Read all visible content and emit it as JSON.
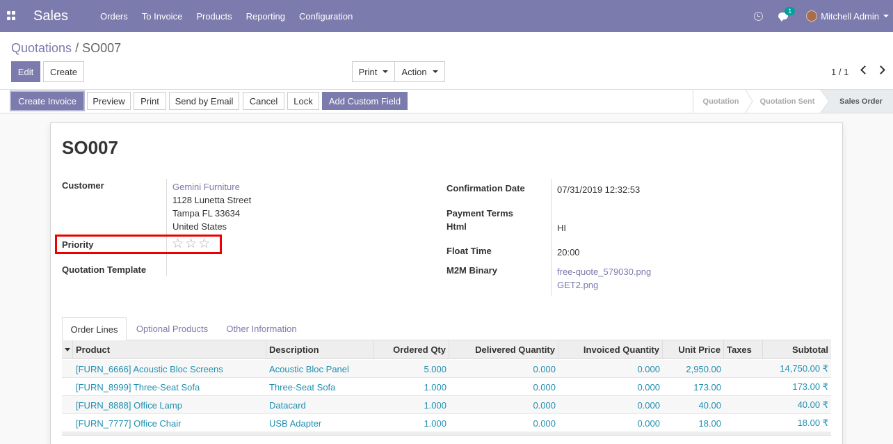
{
  "navbar": {
    "brand": "Sales",
    "menu": [
      "Orders",
      "To Invoice",
      "Products",
      "Reporting",
      "Configuration"
    ],
    "chat_count": "1",
    "user": "Mitchell Admin"
  },
  "breadcrumb": {
    "parent": "Quotations",
    "separator": "/",
    "current": "SO007"
  },
  "buttons": {
    "edit": "Edit",
    "create": "Create",
    "print": "Print",
    "action": "Action"
  },
  "pager": {
    "text": "1 / 1"
  },
  "statusbar": {
    "buttons": [
      "Create Invoice",
      "Preview",
      "Print",
      "Send by Email",
      "Cancel",
      "Lock",
      "Add Custom Field"
    ],
    "stages": [
      "Quotation",
      "Quotation Sent",
      "Sales Order"
    ]
  },
  "record": {
    "name": "SO007",
    "customer_label": "Customer",
    "customer_name": "Gemini Furniture",
    "address_line1": "1128 Lunetta Street",
    "address_line2": "Tampa FL 33634",
    "address_line3": "United States",
    "priority_label": "Priority",
    "priority_level": 0,
    "priority_max": 3,
    "quotation_template_label": "Quotation Template",
    "confirmation_date_label": "Confirmation Date",
    "confirmation_date": "07/31/2019 12:32:53",
    "payment_terms_label": "Payment Terms",
    "html_label": "Html",
    "html_value": "HI",
    "float_time_label": "Float Time",
    "float_time": "20:00",
    "m2m_label": "M2M Binary",
    "m2m_files": [
      "free-quote_579030.png",
      "GET2.png"
    ]
  },
  "tabs": [
    "Order Lines",
    "Optional Products",
    "Other Information"
  ],
  "order_lines": {
    "headers": [
      "Product",
      "Description",
      "Ordered Qty",
      "Delivered Quantity",
      "Invoiced Quantity",
      "Unit Price",
      "Taxes",
      "Subtotal"
    ],
    "rows": [
      [
        "[FURN_6666] Acoustic Bloc Screens",
        "Acoustic Bloc Panel",
        "5.000",
        "0.000",
        "0.000",
        "2,950.00",
        "",
        "14,750.00 ₹"
      ],
      [
        "[FURN_8999] Three-Seat Sofa",
        "Three-Seat Sofa",
        "1.000",
        "0.000",
        "0.000",
        "173.00",
        "",
        "173.00 ₹"
      ],
      [
        "[FURN_8888] Office Lamp",
        "Datacard",
        "1.000",
        "0.000",
        "0.000",
        "40.00",
        "",
        "40.00 ₹"
      ],
      [
        "[FURN_7777] Office Chair",
        "USB Adapter",
        "1.000",
        "0.000",
        "0.000",
        "18.00",
        "",
        "18.00 ₹"
      ]
    ]
  }
}
